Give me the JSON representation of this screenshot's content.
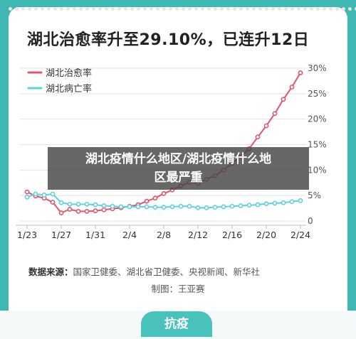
{
  "header": {
    "title": "湖北治愈率升至29.10%，已连升12日"
  },
  "overlay": {
    "line1": "湖北疫情什么地区/湖北疫情什么地",
    "line2": "区最严重"
  },
  "footer": {
    "source_label": "数据来源：",
    "source_text": "国家卫健委、湖北省卫健委、央视新闻、新华社",
    "maker": "制图：王亚赛",
    "banner": "抗疫"
  },
  "colors": {
    "cure": "#e0566a",
    "death": "#5fd0de",
    "accent": "#48c2bb"
  },
  "chart_data": {
    "type": "line",
    "title": "湖北治愈率升至29.10%，已连升12日",
    "x": [
      "1/23",
      "1/24",
      "1/25",
      "1/26",
      "1/27",
      "1/28",
      "1/29",
      "1/30",
      "1/31",
      "2/1",
      "2/2",
      "2/3",
      "2/4",
      "2/5",
      "2/6",
      "2/7",
      "2/8",
      "2/9",
      "2/10",
      "2/11",
      "2/12",
      "2/13",
      "2/14",
      "2/15",
      "2/16",
      "2/17",
      "2/18",
      "2/19",
      "2/20",
      "2/21",
      "2/22",
      "2/23",
      "2/24"
    ],
    "xticks": [
      "1/23",
      "1/27",
      "1/31",
      "2/4",
      "2/8",
      "2/12",
      "2/16",
      "2/20",
      "2/24"
    ],
    "yticks": [
      "0",
      "5%",
      "10%",
      "15%",
      "20%",
      "25%",
      "30%"
    ],
    "ylim": [
      0,
      30
    ],
    "legend": "top-left",
    "series": [
      {
        "name": "湖北治愈率",
        "color": "#e0566a",
        "values": [
          5.7,
          4.9,
          4.5,
          3.7,
          1.6,
          2.3,
          1.9,
          1.9,
          2.0,
          2.2,
          2.4,
          2.6,
          2.9,
          3.2,
          3.9,
          4.5,
          5.4,
          6.1,
          6.9,
          7.6,
          7.4,
          8.2,
          8.9,
          10.0,
          11.3,
          12.7,
          14.2,
          16.5,
          18.7,
          21.1,
          23.9,
          26.3,
          29.1
        ]
      },
      {
        "name": "湖北病亡率",
        "color": "#5fd0de",
        "values": [
          4.7,
          5.3,
          5.1,
          5.3,
          3.6,
          3.3,
          3.3,
          3.3,
          3.2,
          3.0,
          2.9,
          2.8,
          2.8,
          2.8,
          2.8,
          2.7,
          2.7,
          2.8,
          2.9,
          2.9,
          2.6,
          2.6,
          2.7,
          2.8,
          2.9,
          3.0,
          3.1,
          3.2,
          3.4,
          3.5,
          3.6,
          3.8,
          4.0
        ]
      }
    ]
  }
}
